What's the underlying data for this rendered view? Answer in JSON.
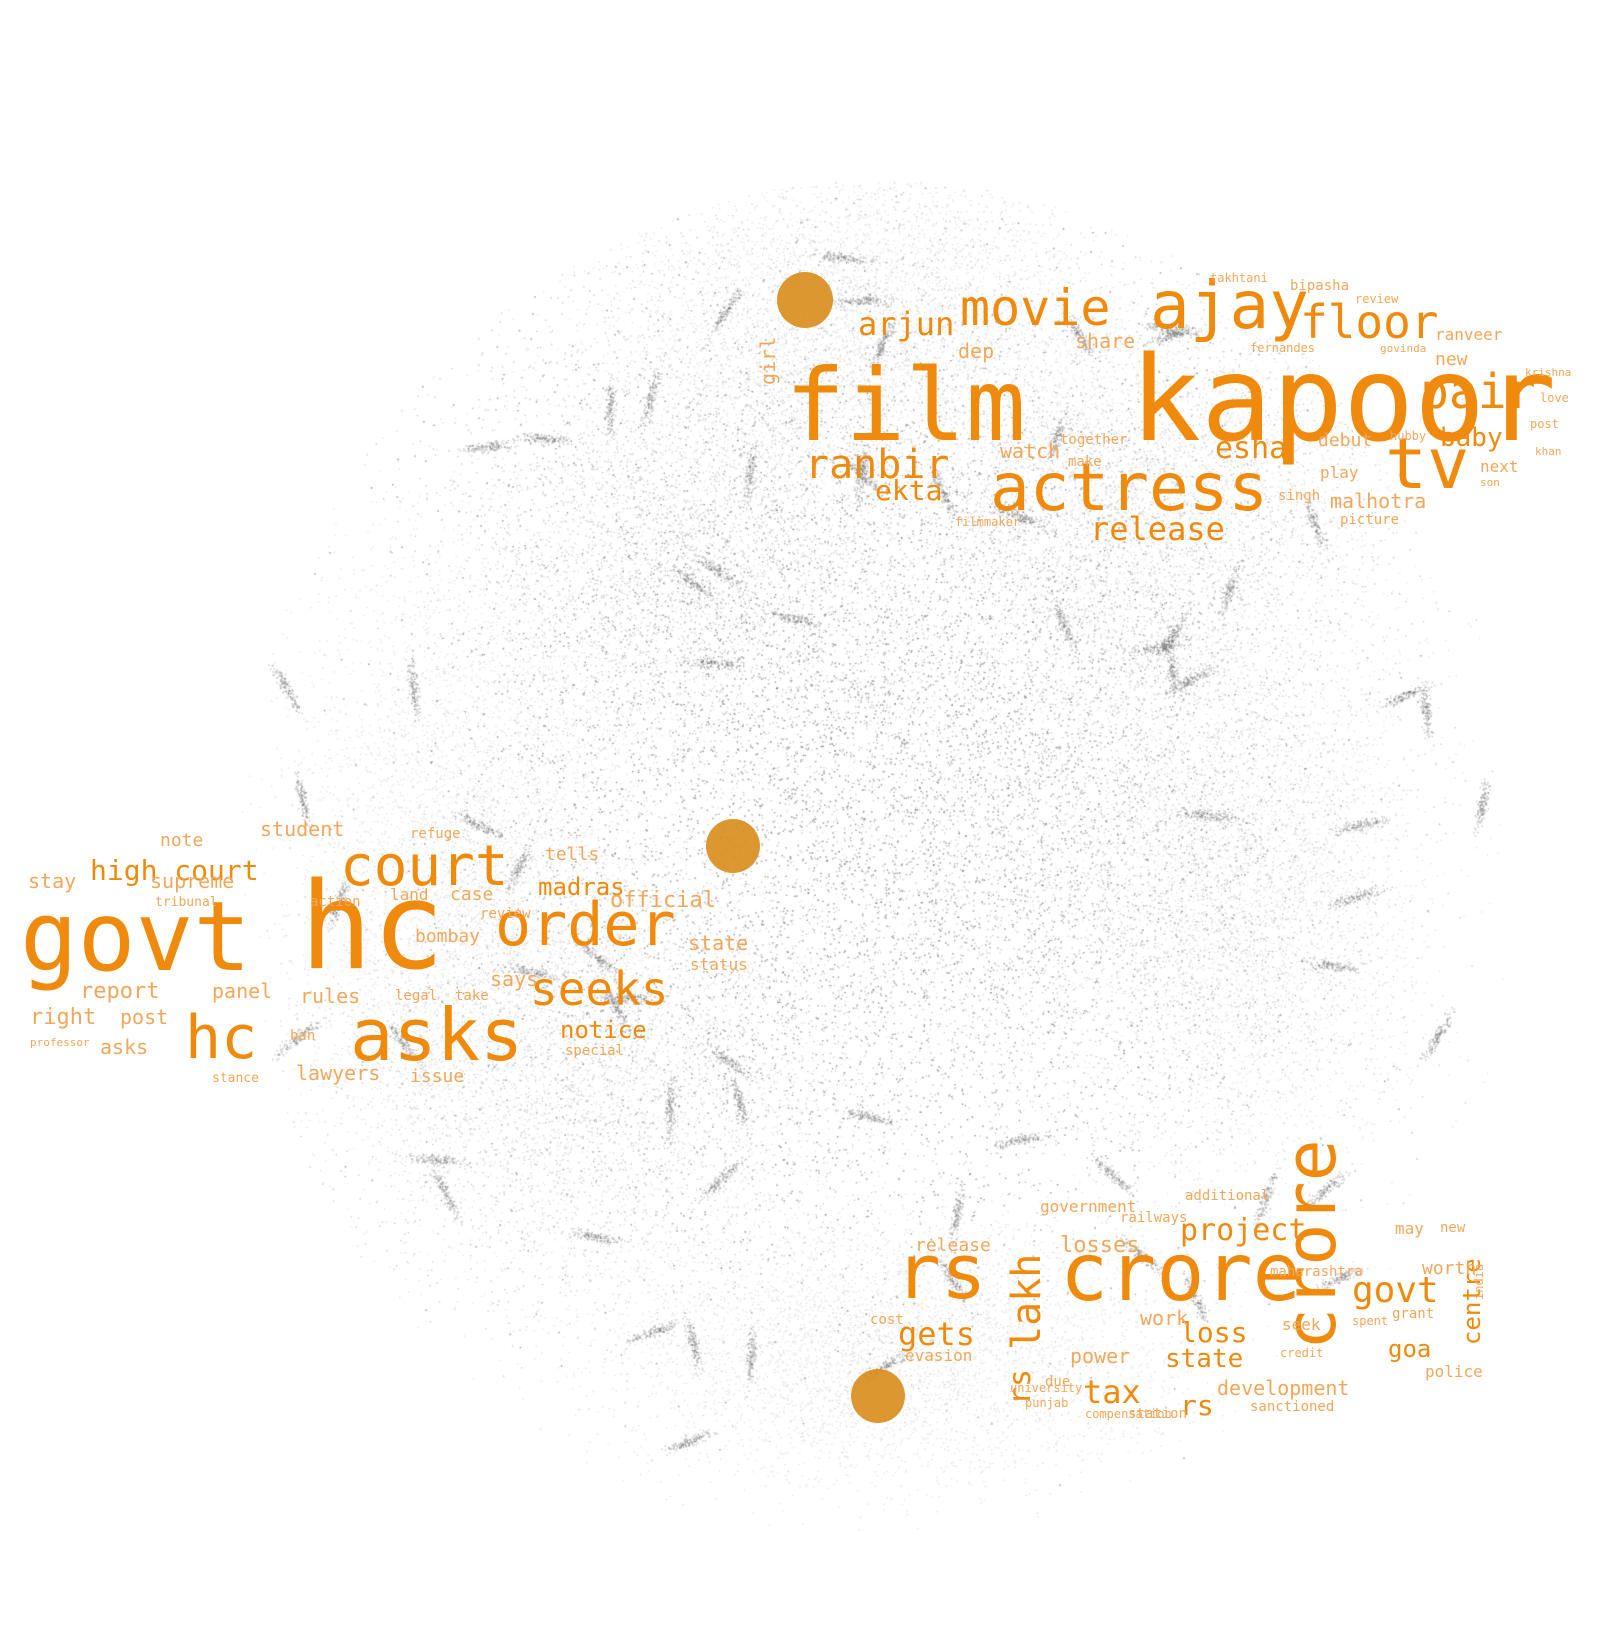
{
  "colors": {
    "background": "#ffffff",
    "point_cloud": "#9a9a9a",
    "word": "#f08a0c",
    "word_dim": "#f3a75a",
    "marker": "#d98c1a"
  },
  "clusters": [
    {
      "id": "entertainment",
      "words": [
        {
          "text": "kapoor"
        },
        {
          "text": "film"
        },
        {
          "text": "actress"
        },
        {
          "text": "ajay"
        },
        {
          "text": "movie"
        },
        {
          "text": "tv"
        },
        {
          "text": "pair"
        },
        {
          "text": "floor"
        },
        {
          "text": "ranbir"
        },
        {
          "text": "arjun"
        },
        {
          "text": "release"
        },
        {
          "text": "esha"
        },
        {
          "text": "ekta"
        },
        {
          "text": "baby"
        },
        {
          "text": "malhotra"
        },
        {
          "text": "share"
        },
        {
          "text": "watch"
        },
        {
          "text": "debut"
        },
        {
          "text": "play"
        },
        {
          "text": "new"
        },
        {
          "text": "next"
        },
        {
          "text": "ranveer"
        },
        {
          "text": "bipasha"
        },
        {
          "text": "review"
        },
        {
          "text": "make"
        },
        {
          "text": "together"
        },
        {
          "text": "singh"
        },
        {
          "text": "picture"
        },
        {
          "text": "filmmaker"
        },
        {
          "text": "girl"
        },
        {
          "text": "takhtani"
        },
        {
          "text": "fernandes"
        },
        {
          "text": "dep"
        },
        {
          "text": "hubby"
        },
        {
          "text": "love"
        },
        {
          "text": "post"
        },
        {
          "text": "krishna"
        },
        {
          "text": "govinda"
        },
        {
          "text": "son"
        },
        {
          "text": "khan"
        }
      ]
    },
    {
      "id": "court",
      "words": [
        {
          "text": "govt"
        },
        {
          "text": "hc"
        },
        {
          "text": "court"
        },
        {
          "text": "order"
        },
        {
          "text": "asks"
        },
        {
          "text": "seeks"
        },
        {
          "text": "high court"
        },
        {
          "text": "hc"
        },
        {
          "text": "madras"
        },
        {
          "text": "supreme"
        },
        {
          "text": "official"
        },
        {
          "text": "notice"
        },
        {
          "text": "says"
        },
        {
          "text": "report"
        },
        {
          "text": "panel"
        },
        {
          "text": "rules"
        },
        {
          "text": "right"
        },
        {
          "text": "post"
        },
        {
          "text": "asks"
        },
        {
          "text": "lawyers"
        },
        {
          "text": "issue"
        },
        {
          "text": "student"
        },
        {
          "text": "note"
        },
        {
          "text": "stay"
        },
        {
          "text": "tells"
        },
        {
          "text": "land"
        },
        {
          "text": "case"
        },
        {
          "text": "state"
        },
        {
          "text": "status"
        },
        {
          "text": "bombay"
        },
        {
          "text": "special"
        },
        {
          "text": "review"
        },
        {
          "text": "ban"
        },
        {
          "text": "legal"
        },
        {
          "text": "take"
        },
        {
          "text": "tribunal"
        },
        {
          "text": "stance"
        },
        {
          "text": "action"
        },
        {
          "text": "refuge"
        },
        {
          "text": "professor"
        }
      ]
    },
    {
      "id": "finance",
      "words": [
        {
          "text": "crore"
        },
        {
          "text": "rs"
        },
        {
          "text": "lakh"
        },
        {
          "text": "crore"
        },
        {
          "text": "govt"
        },
        {
          "text": "gets"
        },
        {
          "text": "tax"
        },
        {
          "text": "project"
        },
        {
          "text": "rs"
        },
        {
          "text": "rs"
        },
        {
          "text": "loss"
        },
        {
          "text": "state"
        },
        {
          "text": "development"
        },
        {
          "text": "goa"
        },
        {
          "text": "centre"
        },
        {
          "text": "losses"
        },
        {
          "text": "power"
        },
        {
          "text": "work"
        },
        {
          "text": "release"
        },
        {
          "text": "worth"
        },
        {
          "text": "government"
        },
        {
          "text": "may"
        },
        {
          "text": "new"
        },
        {
          "text": "seek"
        },
        {
          "text": "police"
        },
        {
          "text": "maharashtra"
        },
        {
          "text": "railways"
        },
        {
          "text": "station"
        },
        {
          "text": "sanctioned"
        },
        {
          "text": "compensation"
        },
        {
          "text": "evasion"
        },
        {
          "text": "grant"
        },
        {
          "text": "india"
        },
        {
          "text": "spent"
        },
        {
          "text": "cost"
        },
        {
          "text": "credit"
        },
        {
          "text": "due"
        },
        {
          "text": "punjab"
        },
        {
          "text": "additional"
        },
        {
          "text": "university"
        }
      ]
    }
  ]
}
